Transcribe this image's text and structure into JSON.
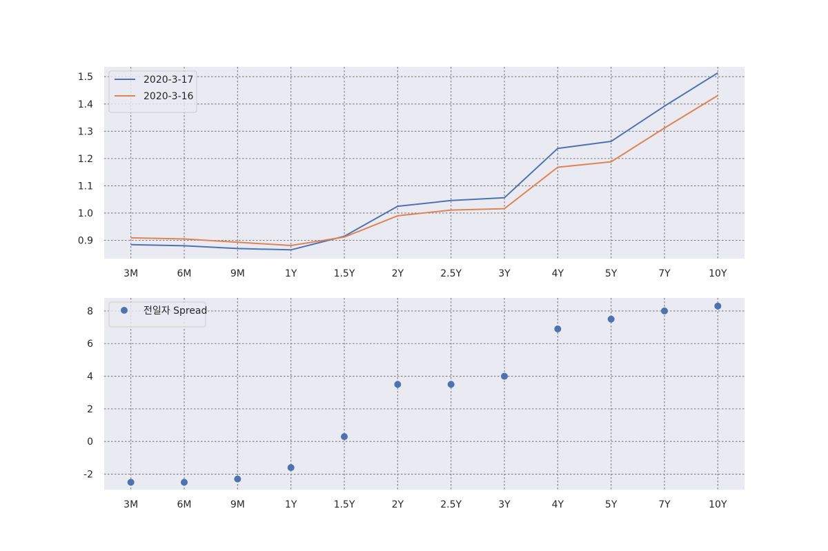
{
  "chart_data": [
    {
      "type": "line",
      "title": "",
      "xlabel": "",
      "ylabel": "",
      "categories": [
        "3M",
        "6M",
        "9M",
        "1Y",
        "1.5Y",
        "2Y",
        "2.5Y",
        "3Y",
        "4Y",
        "5Y",
        "7Y",
        "10Y"
      ],
      "yticks": [
        "0.9",
        "1.0",
        "1.1",
        "1.2",
        "1.3",
        "1.4",
        "1.5"
      ],
      "ylim": [
        0.833,
        1.536
      ],
      "grid": true,
      "legend_position": "upper left",
      "series": [
        {
          "name": "2020-3-17",
          "color": "#4c72b0",
          "values": [
            0.884,
            0.88,
            0.87,
            0.865,
            0.915,
            1.025,
            1.046,
            1.056,
            1.237,
            1.263,
            1.392,
            1.514
          ]
        },
        {
          "name": "2020-3-16",
          "color": "#dd8452",
          "values": [
            0.909,
            0.905,
            0.893,
            0.881,
            0.912,
            0.99,
            1.011,
            1.016,
            1.168,
            1.188,
            1.312,
            1.431
          ]
        }
      ]
    },
    {
      "type": "scatter",
      "title": "",
      "xlabel": "",
      "ylabel": "",
      "categories": [
        "3M",
        "6M",
        "9M",
        "1Y",
        "1.5Y",
        "2Y",
        "2.5Y",
        "3Y",
        "4Y",
        "5Y",
        "7Y",
        "10Y"
      ],
      "yticks": [
        "-2",
        "0",
        "2",
        "4",
        "6",
        "8"
      ],
      "ylim": [
        -2.95,
        8.8
      ],
      "grid": true,
      "legend_position": "upper left",
      "series": [
        {
          "name": "전일자 Spread",
          "color": "#4c72b0",
          "values": [
            -2.5,
            -2.5,
            -2.3,
            -1.6,
            0.3,
            3.5,
            3.5,
            4.0,
            6.9,
            7.5,
            8.0,
            8.3
          ]
        }
      ]
    }
  ]
}
